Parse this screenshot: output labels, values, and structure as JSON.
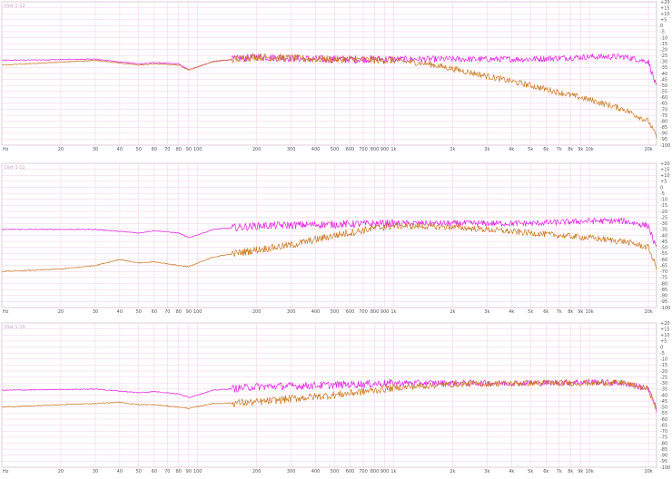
{
  "chart_data": [
    {
      "type": "line",
      "title": "Dist 1-12",
      "x_scale": "log",
      "xlim": [
        10,
        22000
      ],
      "ylim": [
        -100,
        20
      ],
      "yticks": [
        20,
        15,
        10,
        5,
        0,
        -5,
        -10,
        -15,
        -20,
        -25,
        -30,
        -35,
        -40,
        -45,
        -50,
        -55,
        -60,
        -65,
        -70,
        -75,
        -80,
        -85,
        -90,
        -95,
        -100
      ],
      "xtick_labels": [
        "Hz",
        "20",
        "30",
        "40",
        "50",
        "60",
        "70",
        "80",
        "90",
        "100",
        "200",
        "300",
        "400",
        "500",
        "600",
        "700",
        "800",
        "900",
        "1k",
        "2k",
        "3k",
        "4k",
        "5k",
        "6k",
        "7k",
        "8k",
        "9k",
        "10k",
        "20k"
      ],
      "grid": true,
      "colors": {
        "series_a": "#e020e0",
        "series_b": "#c87820",
        "gridline": "#f2cce6",
        "axis": "#b0b0b0"
      },
      "series": [
        {
          "color": "#e020e0",
          "x": [
            10,
            30,
            50,
            60,
            80,
            90,
            120,
            200,
            400,
            1000,
            2000,
            5000,
            10000,
            15000,
            20000,
            22000
          ],
          "y": [
            -29,
            -28,
            -32,
            -31,
            -32,
            -37,
            -30,
            -26,
            -28,
            -28,
            -28,
            -28,
            -26,
            -26,
            -30,
            -52
          ]
        },
        {
          "color": "#c87820",
          "x": [
            10,
            30,
            50,
            60,
            80,
            90,
            120,
            200,
            400,
            1000,
            1500,
            2000,
            5000,
            10000,
            15000,
            20000,
            22000
          ],
          "y": [
            -33,
            -29,
            -33,
            -32,
            -33,
            -37,
            -30,
            -26,
            -28,
            -29,
            -32,
            -36,
            -50,
            -62,
            -70,
            -80,
            -93
          ]
        }
      ]
    },
    {
      "type": "line",
      "title": "Dist 1-11",
      "x_scale": "log",
      "xlim": [
        10,
        22000
      ],
      "ylim": [
        -100,
        20
      ],
      "yticks": [
        20,
        15,
        10,
        5,
        0,
        -5,
        -10,
        -15,
        -20,
        -25,
        -30,
        -35,
        -40,
        -45,
        -50,
        -55,
        -60,
        -65,
        -70,
        -75,
        -80,
        -85,
        -90,
        -95,
        -100
      ],
      "xtick_labels": [
        "Hz",
        "20",
        "30",
        "40",
        "50",
        "60",
        "70",
        "80",
        "90",
        "100",
        "200",
        "300",
        "400",
        "500",
        "600",
        "700",
        "800",
        "900",
        "1k",
        "2k",
        "3k",
        "4k",
        "5k",
        "6k",
        "7k",
        "8k",
        "9k",
        "10k",
        "20k"
      ],
      "grid": true,
      "colors": {
        "series_a": "#e020e0",
        "series_b": "#c87820",
        "gridline": "#f2cce6",
        "axis": "#b0b0b0"
      },
      "series": [
        {
          "color": "#e020e0",
          "x": [
            10,
            30,
            50,
            60,
            80,
            90,
            120,
            200,
            400,
            1000,
            2000,
            5000,
            10000,
            15000,
            20000,
            22000
          ],
          "y": [
            -35,
            -35,
            -38,
            -36,
            -38,
            -42,
            -35,
            -32,
            -31,
            -30,
            -30,
            -30,
            -28,
            -28,
            -32,
            -52
          ]
        },
        {
          "color": "#c87820",
          "x": [
            10,
            20,
            30,
            40,
            50,
            60,
            80,
            90,
            120,
            200,
            300,
            500,
            800,
            1000,
            2000,
            5000,
            10000,
            15000,
            20000,
            22000
          ],
          "y": [
            -70,
            -68,
            -65,
            -60,
            -63,
            -62,
            -65,
            -66,
            -58,
            -52,
            -48,
            -40,
            -34,
            -32,
            -33,
            -38,
            -42,
            -45,
            -50,
            -67
          ]
        }
      ]
    },
    {
      "type": "line",
      "title": "Dist 1-10",
      "x_scale": "log",
      "xlim": [
        10,
        22000
      ],
      "ylim": [
        -100,
        20
      ],
      "yticks": [
        20,
        15,
        10,
        5,
        0,
        -5,
        -10,
        -15,
        -20,
        -25,
        -30,
        -35,
        -40,
        -45,
        -50,
        -55,
        -60,
        -65,
        -70,
        -75,
        -80,
        -85,
        -90,
        -95,
        -100
      ],
      "xtick_labels": [
        "Hz",
        "20",
        "30",
        "40",
        "50",
        "60",
        "70",
        "80",
        "90",
        "100",
        "200",
        "300",
        "400",
        "500",
        "600",
        "700",
        "800",
        "900",
        "1k",
        "2k",
        "3k",
        "4k",
        "5k",
        "6k",
        "7k",
        "8k",
        "9k",
        "10k",
        "20k"
      ],
      "grid": true,
      "colors": {
        "series_a": "#e020e0",
        "series_b": "#c87820",
        "gridline": "#f2cce6",
        "axis": "#b0b0b0"
      },
      "series": [
        {
          "color": "#e020e0",
          "x": [
            10,
            30,
            50,
            60,
            80,
            90,
            120,
            200,
            400,
            1000,
            2000,
            5000,
            10000,
            15000,
            20000,
            22000
          ],
          "y": [
            -36,
            -35,
            -38,
            -37,
            -39,
            -42,
            -36,
            -33,
            -32,
            -30,
            -30,
            -30,
            -29,
            -30,
            -35,
            -52
          ]
        },
        {
          "color": "#c87820",
          "x": [
            10,
            20,
            30,
            40,
            50,
            60,
            80,
            90,
            120,
            200,
            300,
            500,
            1000,
            2000,
            5000,
            10000,
            15000,
            20000,
            22000
          ],
          "y": [
            -50,
            -48,
            -47,
            -46,
            -48,
            -48,
            -50,
            -51,
            -47,
            -46,
            -43,
            -40,
            -34,
            -31,
            -30,
            -30,
            -30,
            -35,
            -52
          ]
        }
      ]
    }
  ]
}
